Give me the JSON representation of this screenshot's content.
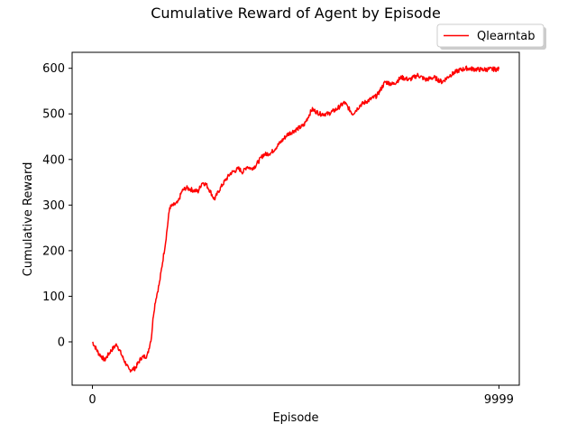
{
  "chart_data": {
    "type": "line",
    "title": "Cumulative Reward of Agent by Episode",
    "xlabel": "Episode",
    "ylabel": "Cumulative Reward",
    "xlim": [
      -500,
      10500
    ],
    "ylim": [
      -95,
      635
    ],
    "x_ticks": [
      0,
      9999
    ],
    "y_ticks": [
      0,
      100,
      200,
      300,
      400,
      500,
      600
    ],
    "grid": false,
    "legend": {
      "placement": "top-right, above plot"
    },
    "series": [
      {
        "name": "Qlearntab",
        "color": "#ff0000",
        "x": [
          0,
          150,
          300,
          450,
          600,
          750,
          900,
          1050,
          1200,
          1350,
          1450,
          1500,
          1550,
          1600,
          1650,
          1700,
          1800,
          1900,
          2000,
          2100,
          2200,
          2300,
          2400,
          2500,
          2600,
          2700,
          2800,
          2900,
          3000,
          3100,
          3200,
          3300,
          3400,
          3500,
          3600,
          3700,
          3800,
          3900,
          4000,
          4200,
          4400,
          4600,
          4800,
          5000,
          5200,
          5400,
          5600,
          5800,
          6000,
          6200,
          6400,
          6500,
          6600,
          6800,
          7000,
          7200,
          7400,
          7600,
          7800,
          8000,
          8200,
          8400,
          8600,
          8800,
          9000,
          9200,
          9400,
          9600,
          9800,
          9999
        ],
        "y": [
          0,
          -25,
          -40,
          -20,
          -5,
          -35,
          -62,
          -58,
          -35,
          -30,
          10,
          60,
          90,
          110,
          130,
          160,
          220,
          295,
          300,
          305,
          330,
          338,
          335,
          332,
          330,
          350,
          345,
          330,
          312,
          330,
          345,
          358,
          370,
          375,
          380,
          372,
          385,
          380,
          385,
          410,
          415,
          435,
          455,
          465,
          475,
          510,
          500,
          500,
          510,
          525,
          500,
          510,
          520,
          530,
          540,
          570,
          565,
          580,
          575,
          585,
          575,
          580,
          570,
          585,
          595,
          600,
          598,
          597,
          598,
          598
        ]
      }
    ]
  }
}
